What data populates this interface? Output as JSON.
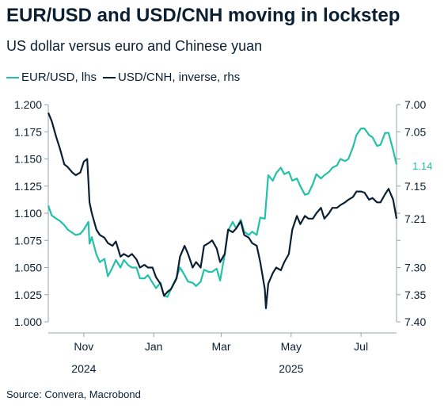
{
  "title": "EUR/USD and USD/CNH moving in lockstep",
  "subtitle": "US dollar versus euro and Chinese yuan",
  "source": "Source: Convera, Macrobond",
  "colors": {
    "eurusd": "#22c1a8",
    "usdcnh": "#0b1f33",
    "axis": "#9aa3ab",
    "text": "#0b1f33"
  },
  "chart_data": {
    "type": "line",
    "title": "EUR/USD and USD/CNH moving in lockstep",
    "subtitle": "US dollar versus euro and Chinese yuan",
    "grid": false,
    "legend_placement": "top-left",
    "x_ticks": [
      {
        "label": "Nov",
        "year": "2024",
        "date": "2024-11-01"
      },
      {
        "label": "Jan",
        "year": "",
        "date": "2025-01-01"
      },
      {
        "label": "Mar",
        "year": "",
        "date": "2025-03-01"
      },
      {
        "label": "May",
        "year": "2025",
        "date": "2025-05-01"
      },
      {
        "label": "Jul",
        "year": "",
        "date": "2025-07-01"
      }
    ],
    "xlim": [
      "2024-10-01",
      "2025-08-01"
    ],
    "left_axis": {
      "ylim": [
        1.0,
        1.2
      ],
      "ticks": [
        "1.000",
        "1.025",
        "1.050",
        "1.075",
        "1.100",
        "1.125",
        "1.150",
        "1.175",
        "1.200"
      ]
    },
    "right_axis": {
      "ylim": [
        7.0,
        7.4
      ],
      "inverted": true,
      "ticks": [
        "7.00",
        "7.05",
        "7.10",
        "7.15",
        "7.20",
        "7.25",
        "7.30",
        "7.35",
        "7.40"
      ],
      "tick_labels_shown": [
        "7.00",
        "7.05",
        "7.15",
        "7.21",
        "7.30",
        "7.35",
        "7.40"
      ]
    },
    "series": [
      {
        "name": "EUR/USD, lhs",
        "axis": "left",
        "end_label": "1.14",
        "points": [
          [
            "2024-10-01",
            1.107
          ],
          [
            "2024-10-04",
            1.098
          ],
          [
            "2024-10-08",
            1.095
          ],
          [
            "2024-10-11",
            1.093
          ],
          [
            "2024-10-15",
            1.089
          ],
          [
            "2024-10-18",
            1.085
          ],
          [
            "2024-10-22",
            1.082
          ],
          [
            "2024-10-25",
            1.08
          ],
          [
            "2024-10-29",
            1.081
          ],
          [
            "2024-11-01",
            1.085
          ],
          [
            "2024-11-05",
            1.092
          ],
          [
            "2024-11-06",
            1.072
          ],
          [
            "2024-11-08",
            1.078
          ],
          [
            "2024-11-12",
            1.062
          ],
          [
            "2024-11-15",
            1.055
          ],
          [
            "2024-11-19",
            1.058
          ],
          [
            "2024-11-22",
            1.042
          ],
          [
            "2024-11-26",
            1.05
          ],
          [
            "2024-11-29",
            1.057
          ],
          [
            "2024-12-03",
            1.05
          ],
          [
            "2024-12-06",
            1.057
          ],
          [
            "2024-12-10",
            1.052
          ],
          [
            "2024-12-13",
            1.05
          ],
          [
            "2024-12-17",
            1.05
          ],
          [
            "2024-12-20",
            1.04
          ],
          [
            "2024-12-24",
            1.04
          ],
          [
            "2024-12-27",
            1.043
          ],
          [
            "2024-12-31",
            1.036
          ],
          [
            "2025-01-03",
            1.031
          ],
          [
            "2025-01-07",
            1.036
          ],
          [
            "2025-01-10",
            1.024
          ],
          [
            "2025-01-13",
            1.023
          ],
          [
            "2025-01-16",
            1.03
          ],
          [
            "2025-01-21",
            1.041
          ],
          [
            "2025-01-24",
            1.05
          ],
          [
            "2025-01-28",
            1.043
          ],
          [
            "2025-01-31",
            1.037
          ],
          [
            "2025-02-04",
            1.036
          ],
          [
            "2025-02-07",
            1.033
          ],
          [
            "2025-02-11",
            1.037
          ],
          [
            "2025-02-14",
            1.048
          ],
          [
            "2025-02-18",
            1.046
          ],
          [
            "2025-02-21",
            1.046
          ],
          [
            "2025-02-25",
            1.049
          ],
          [
            "2025-02-28",
            1.038
          ],
          [
            "2025-03-04",
            1.062
          ],
          [
            "2025-03-07",
            1.084
          ],
          [
            "2025-03-11",
            1.092
          ],
          [
            "2025-03-14",
            1.086
          ],
          [
            "2025-03-18",
            1.094
          ],
          [
            "2025-03-21",
            1.083
          ],
          [
            "2025-03-25",
            1.08
          ],
          [
            "2025-03-28",
            1.083
          ],
          [
            "2025-04-01",
            1.08
          ],
          [
            "2025-04-04",
            1.096
          ],
          [
            "2025-04-08",
            1.095
          ],
          [
            "2025-04-11",
            1.135
          ],
          [
            "2025-04-15",
            1.13
          ],
          [
            "2025-04-18",
            1.137
          ],
          [
            "2025-04-22",
            1.142
          ],
          [
            "2025-04-25",
            1.136
          ],
          [
            "2025-04-29",
            1.138
          ],
          [
            "2025-05-02",
            1.13
          ],
          [
            "2025-05-06",
            1.132
          ],
          [
            "2025-05-09",
            1.125
          ],
          [
            "2025-05-13",
            1.117
          ],
          [
            "2025-05-16",
            1.118
          ],
          [
            "2025-05-20",
            1.127
          ],
          [
            "2025-05-23",
            1.136
          ],
          [
            "2025-05-27",
            1.132
          ],
          [
            "2025-05-30",
            1.135
          ],
          [
            "2025-06-03",
            1.138
          ],
          [
            "2025-06-06",
            1.142
          ],
          [
            "2025-06-10",
            1.144
          ],
          [
            "2025-06-13",
            1.15
          ],
          [
            "2025-06-17",
            1.148
          ],
          [
            "2025-06-20",
            1.15
          ],
          [
            "2025-06-24",
            1.161
          ],
          [
            "2025-06-27",
            1.172
          ],
          [
            "2025-07-01",
            1.178
          ],
          [
            "2025-07-04",
            1.178
          ],
          [
            "2025-07-08",
            1.172
          ],
          [
            "2025-07-11",
            1.17
          ],
          [
            "2025-07-15",
            1.162
          ],
          [
            "2025-07-18",
            1.163
          ],
          [
            "2025-07-22",
            1.174
          ],
          [
            "2025-07-25",
            1.174
          ],
          [
            "2025-07-29",
            1.158
          ],
          [
            "2025-08-01",
            1.145
          ]
        ]
      },
      {
        "name": "USD/CNH, inverse, rhs",
        "axis": "right",
        "end_label": "7.21",
        "points": [
          [
            "2024-10-01",
            7.015
          ],
          [
            "2024-10-04",
            7.03
          ],
          [
            "2024-10-08",
            7.06
          ],
          [
            "2024-10-11",
            7.08
          ],
          [
            "2024-10-15",
            7.11
          ],
          [
            "2024-10-18",
            7.115
          ],
          [
            "2024-10-22",
            7.125
          ],
          [
            "2024-10-25",
            7.13
          ],
          [
            "2024-10-29",
            7.125
          ],
          [
            "2024-11-01",
            7.105
          ],
          [
            "2024-11-04",
            7.1
          ],
          [
            "2024-11-06",
            7.18
          ],
          [
            "2024-11-08",
            7.2
          ],
          [
            "2024-11-12",
            7.23
          ],
          [
            "2024-11-15",
            7.24
          ],
          [
            "2024-11-19",
            7.245
          ],
          [
            "2024-11-22",
            7.255
          ],
          [
            "2024-11-26",
            7.26
          ],
          [
            "2024-11-29",
            7.252
          ],
          [
            "2024-12-03",
            7.28
          ],
          [
            "2024-12-06",
            7.275
          ],
          [
            "2024-12-10",
            7.28
          ],
          [
            "2024-12-13",
            7.275
          ],
          [
            "2024-12-17",
            7.285
          ],
          [
            "2024-12-20",
            7.3
          ],
          [
            "2024-12-24",
            7.295
          ],
          [
            "2024-12-27",
            7.3
          ],
          [
            "2024-12-31",
            7.3
          ],
          [
            "2025-01-03",
            7.318
          ],
          [
            "2025-01-07",
            7.33
          ],
          [
            "2025-01-10",
            7.352
          ],
          [
            "2025-01-13",
            7.345
          ],
          [
            "2025-01-16",
            7.34
          ],
          [
            "2025-01-21",
            7.32
          ],
          [
            "2025-01-24",
            7.28
          ],
          [
            "2025-01-28",
            7.26
          ],
          [
            "2025-01-31",
            7.275
          ],
          [
            "2025-02-04",
            7.3
          ],
          [
            "2025-02-07",
            7.29
          ],
          [
            "2025-02-11",
            7.3
          ],
          [
            "2025-02-14",
            7.26
          ],
          [
            "2025-02-18",
            7.255
          ],
          [
            "2025-02-21",
            7.25
          ],
          [
            "2025-02-25",
            7.265
          ],
          [
            "2025-02-28",
            7.29
          ],
          [
            "2025-03-04",
            7.275
          ],
          [
            "2025-03-07",
            7.23
          ],
          [
            "2025-03-11",
            7.235
          ],
          [
            "2025-03-14",
            7.228
          ],
          [
            "2025-03-18",
            7.215
          ],
          [
            "2025-03-21",
            7.24
          ],
          [
            "2025-03-25",
            7.245
          ],
          [
            "2025-03-28",
            7.255
          ],
          [
            "2025-04-01",
            7.26
          ],
          [
            "2025-04-04",
            7.29
          ],
          [
            "2025-04-08",
            7.34
          ],
          [
            "2025-04-09",
            7.375
          ],
          [
            "2025-04-11",
            7.33
          ],
          [
            "2025-04-15",
            7.31
          ],
          [
            "2025-04-18",
            7.3
          ],
          [
            "2025-04-22",
            7.305
          ],
          [
            "2025-04-25",
            7.29
          ],
          [
            "2025-04-29",
            7.275
          ],
          [
            "2025-05-02",
            7.23
          ],
          [
            "2025-05-06",
            7.205
          ],
          [
            "2025-05-09",
            7.22
          ],
          [
            "2025-05-13",
            7.205
          ],
          [
            "2025-05-16",
            7.21
          ],
          [
            "2025-05-20",
            7.21
          ],
          [
            "2025-05-23",
            7.2
          ],
          [
            "2025-05-27",
            7.19
          ],
          [
            "2025-05-30",
            7.21
          ],
          [
            "2025-06-03",
            7.2
          ],
          [
            "2025-06-06",
            7.19
          ],
          [
            "2025-06-10",
            7.19
          ],
          [
            "2025-06-13",
            7.185
          ],
          [
            "2025-06-17",
            7.18
          ],
          [
            "2025-06-20",
            7.175
          ],
          [
            "2025-06-24",
            7.17
          ],
          [
            "2025-06-27",
            7.16
          ],
          [
            "2025-07-01",
            7.16
          ],
          [
            "2025-07-04",
            7.162
          ],
          [
            "2025-07-08",
            7.175
          ],
          [
            "2025-07-11",
            7.172
          ],
          [
            "2025-07-15",
            7.18
          ],
          [
            "2025-07-18",
            7.18
          ],
          [
            "2025-07-22",
            7.165
          ],
          [
            "2025-07-25",
            7.155
          ],
          [
            "2025-07-29",
            7.175
          ],
          [
            "2025-08-01",
            7.21
          ]
        ]
      }
    ]
  }
}
